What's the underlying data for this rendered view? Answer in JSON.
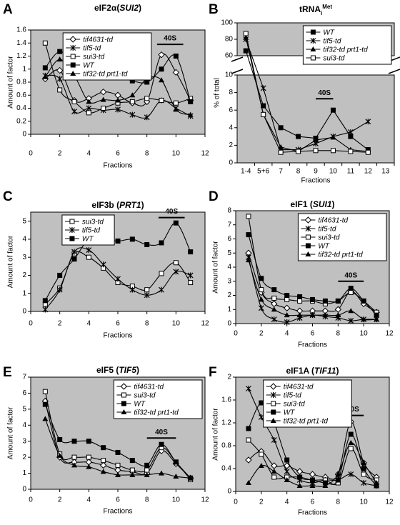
{
  "chart_data": [
    {
      "type": "line",
      "panel": "A",
      "title": [
        {
          "text": "eIF2α("
        },
        {
          "text": "SUI2",
          "style": "italic"
        },
        {
          "text": ")"
        }
      ],
      "xlabel": "Fractions",
      "ylabel": "Amount of factor",
      "smooth": true,
      "legend": "top-center",
      "x": [
        1,
        2,
        3,
        4,
        5,
        6,
        7,
        8,
        9,
        10,
        11
      ],
      "xlim": [
        0,
        12
      ],
      "xticks": [
        0,
        2,
        4,
        6,
        8,
        10,
        12
      ],
      "ylim": [
        0,
        1.6
      ],
      "yticks": [
        0,
        0.2,
        0.4,
        0.6,
        0.8,
        1,
        1.2,
        1.4,
        1.6
      ],
      "annotation": {
        "text": "40S",
        "x": [
          8.7,
          10.5
        ],
        "y": 1.38
      },
      "series": [
        {
          "name": "tif4631-td",
          "marker": "diamond",
          "color": "#000000",
          "values": [
            0.85,
            0.98,
            0.52,
            0.55,
            0.65,
            0.6,
            0.48,
            0.5,
            1.22,
            0.95,
            0.52
          ]
        },
        {
          "name": "tif5-td",
          "marker": "asterisk",
          "color": "#000000",
          "values": [
            0.9,
            0.85,
            0.35,
            0.4,
            0.37,
            0.38,
            0.3,
            0.26,
            0.52,
            0.4,
            0.28
          ]
        },
        {
          "name": "sui3-td",
          "marker": "square-open",
          "color": "#000000",
          "values": [
            1.4,
            0.68,
            0.5,
            0.33,
            0.4,
            0.48,
            0.5,
            0.55,
            0.52,
            0.48,
            0.55
          ]
        },
        {
          "name": "WT",
          "marker": "square",
          "color": "#000000",
          "values": [
            1.02,
            1.27,
            1.08,
            0.98,
            0.97,
            0.9,
            0.82,
            0.8,
            1.0,
            1.2,
            0.5
          ]
        },
        {
          "name": "tif32-td prt1-td",
          "marker": "triangle",
          "color": "#000000",
          "values": [
            0.88,
            1.15,
            0.9,
            0.5,
            0.53,
            0.52,
            0.6,
            0.85,
            0.83,
            0.38,
            0.3
          ]
        }
      ]
    },
    {
      "type": "line",
      "panel": "B",
      "title": [
        {
          "text": "tRNA"
        },
        {
          "text": "i",
          "style": "sub"
        },
        {
          "text": "Met",
          "style": "sup"
        }
      ],
      "xlabel": "Fractions",
      "ylabel": "% of total",
      "smooth": false,
      "legend": "top-right",
      "categories": [
        "1-4",
        "5+6",
        "7",
        "8",
        "9",
        "10",
        "11",
        "12",
        "13"
      ],
      "ylim": [
        0,
        100
      ],
      "ybreak": [
        10,
        60
      ],
      "yticks": [
        0,
        2,
        4,
        6,
        8,
        10,
        60,
        80,
        100
      ],
      "annotation": {
        "text": "40S",
        "x": [
          "9",
          "10"
        ],
        "y": 7.3
      },
      "series": [
        {
          "name": "WT",
          "marker": "square",
          "color": "#000000",
          "values": [
            66,
            6.5,
            4,
            3,
            2.8,
            6,
            3,
            1.5,
            null
          ]
        },
        {
          "name": "tif5-td",
          "marker": "asterisk",
          "color": "#000000",
          "values": [
            80,
            8.5,
            1.5,
            1.5,
            2.2,
            3,
            3.5,
            4.7,
            null
          ]
        },
        {
          "name": "tif32-td prt1-td",
          "marker": "triangle",
          "color": "#000000",
          "values": [
            82,
            5.5,
            1.8,
            1.3,
            2.6,
            2.9,
            1.5,
            1.3,
            null
          ]
        },
        {
          "name": "sui3-td",
          "marker": "square-open",
          "color": "#000000",
          "values": [
            87,
            5.5,
            1.2,
            1.3,
            1.4,
            1.4,
            1.3,
            1.2,
            null
          ]
        }
      ]
    },
    {
      "type": "line",
      "panel": "C",
      "title": [
        {
          "text": "eIF3b ("
        },
        {
          "text": "PRT1",
          "style": "italic"
        },
        {
          "text": ")"
        }
      ],
      "xlabel": "Fractions",
      "ylabel": "Amount of factor",
      "smooth": true,
      "legend": "top-left",
      "x": [
        1,
        2,
        3,
        4,
        5,
        6,
        7,
        8,
        9,
        10,
        11
      ],
      "xlim": [
        0,
        12
      ],
      "xticks": [
        0,
        2,
        4,
        6,
        8,
        10,
        12
      ],
      "ylim": [
        0,
        5.5
      ],
      "yticks": [
        0,
        1,
        2,
        3,
        4,
        5
      ],
      "annotation": {
        "text": "40S",
        "x": [
          8.8,
          10.6
        ],
        "y": 5.2
      },
      "series": [
        {
          "name": "sui3-td",
          "marker": "square-open",
          "color": "#000000",
          "values": [
            0.4,
            1.3,
            3.2,
            3.0,
            2.4,
            1.6,
            1.4,
            1.2,
            2.1,
            2.7,
            1.6
          ]
        },
        {
          "name": "tif5-td",
          "marker": "asterisk",
          "color": "#000000",
          "values": [
            0.1,
            1.2,
            3.3,
            3.4,
            2.6,
            1.8,
            1.2,
            0.9,
            1.2,
            2.2,
            2.0
          ]
        },
        {
          "name": "WT",
          "marker": "square",
          "color": "#000000",
          "values": [
            0.6,
            2.0,
            2.9,
            4.0,
            4.0,
            3.9,
            4.0,
            3.7,
            3.8,
            4.9,
            3.3
          ]
        }
      ]
    },
    {
      "type": "line",
      "panel": "D",
      "title": [
        {
          "text": "eIF1 ("
        },
        {
          "text": "SUI1",
          "style": "italic"
        },
        {
          "text": ")"
        }
      ],
      "xlabel": "Fractions",
      "ylabel": "Amount of factor",
      "smooth": true,
      "legend": "top-right",
      "x": [
        1,
        2,
        3,
        4,
        5,
        6,
        7,
        8,
        9,
        10,
        11
      ],
      "xlim": [
        0,
        12
      ],
      "xticks": [
        0,
        2,
        4,
        6,
        8,
        10,
        12
      ],
      "ylim": [
        0,
        8
      ],
      "yticks": [
        0,
        1,
        2,
        3,
        4,
        5,
        6,
        7,
        8
      ],
      "annotation": {
        "text": "40S",
        "x": [
          8,
          10
        ],
        "y": 3.0
      },
      "series": [
        {
          "name": "tif4631-td",
          "marker": "diamond",
          "color": "#000000",
          "values": [
            5.0,
            2.2,
            1.4,
            1.1,
            0.9,
            0.9,
            0.9,
            1.0,
            2.3,
            1.4,
            0.8
          ]
        },
        {
          "name": "tif5-td",
          "marker": "asterisk",
          "color": "#000000",
          "values": [
            4.7,
            1.1,
            0.3,
            0.1,
            0.4,
            0.6,
            0.5,
            0.4,
            0.2,
            0.3,
            0.3
          ]
        },
        {
          "name": "sui3-td",
          "marker": "square-open",
          "color": "#000000",
          "values": [
            7.6,
            2.4,
            1.8,
            1.7,
            1.6,
            1.6,
            1.4,
            1.6,
            2.2,
            1.6,
            0.8
          ]
        },
        {
          "name": "WT",
          "marker": "square",
          "color": "#000000",
          "values": [
            6.3,
            3.2,
            2.4,
            2.0,
            1.9,
            1.7,
            1.6,
            1.6,
            2.5,
            1.6,
            0.6
          ]
        },
        {
          "name": "tif32-td prt1-td",
          "marker": "triangle",
          "color": "#000000",
          "values": [
            4.5,
            1.7,
            1.0,
            0.6,
            0.6,
            0.6,
            0.6,
            0.6,
            0.9,
            0.3,
            0.3
          ]
        }
      ]
    },
    {
      "type": "line",
      "panel": "E",
      "title": [
        {
          "text": "eIF5 ("
        },
        {
          "text": "TIF5",
          "style": "italic"
        },
        {
          "text": ")"
        }
      ],
      "xlabel": "Fractions",
      "ylabel": "Amount of factor",
      "smooth": true,
      "legend": "top-right",
      "x": [
        1,
        2,
        3,
        4,
        5,
        6,
        7,
        8,
        9,
        10,
        11
      ],
      "xlim": [
        0,
        12
      ],
      "xticks": [
        0,
        2,
        4,
        6,
        8,
        10,
        12
      ],
      "ylim": [
        0,
        7
      ],
      "yticks": [
        0,
        1,
        2,
        3,
        4,
        5,
        6,
        7
      ],
      "annotation": {
        "text": "40S",
        "x": [
          8,
          10
        ],
        "y": 3.2
      },
      "series": [
        {
          "name": "tif4631-td",
          "marker": "diamond",
          "color": "#000000",
          "values": [
            5.5,
            2.0,
            1.7,
            1.7,
            1.5,
            1.2,
            1.1,
            1.0,
            2.4,
            1.6,
            0.7
          ]
        },
        {
          "name": "sui3-td",
          "marker": "square-open",
          "color": "#000000",
          "values": [
            6.1,
            2.2,
            2.0,
            2.0,
            1.8,
            1.5,
            1.2,
            1.2,
            2.6,
            1.7,
            0.6
          ]
        },
        {
          "name": "WT",
          "marker": "square",
          "color": "#000000",
          "values": [
            5.3,
            3.1,
            3.0,
            3.0,
            2.6,
            2.3,
            1.8,
            1.5,
            2.8,
            1.7,
            0.7
          ]
        },
        {
          "name": "tif32-td prt1-td",
          "marker": "triangle",
          "color": "#000000",
          "values": [
            4.4,
            2.1,
            1.5,
            1.4,
            1.1,
            0.9,
            0.9,
            0.9,
            1.0,
            0.8,
            0.7
          ]
        }
      ]
    },
    {
      "type": "line",
      "panel": "F",
      "title": [
        {
          "text": "eIF1A ("
        },
        {
          "text": "TIF11",
          "style": "italic"
        },
        {
          "text": ")"
        }
      ],
      "xlabel": "Fractions",
      "ylabel": "Amount of factor",
      "smooth": true,
      "legend": "top-left",
      "x": [
        1,
        2,
        3,
        4,
        5,
        6,
        7,
        8,
        9,
        10,
        11
      ],
      "xlim": [
        0,
        12
      ],
      "xticks": [
        0,
        2,
        4,
        6,
        8,
        10,
        12
      ],
      "ylim": [
        0,
        2
      ],
      "yticks": [
        0,
        0.4,
        0.8,
        1.2,
        1.6,
        2
      ],
      "annotation": {
        "text": "40S",
        "x": [
          8.3,
          10
        ],
        "y": 1.33
      },
      "series": [
        {
          "name": "tif4631-td",
          "marker": "diamond",
          "color": "#000000",
          "values": [
            0.55,
            0.7,
            0.45,
            0.45,
            0.35,
            0.3,
            0.25,
            0.3,
            1.22,
            0.5,
            0.25
          ]
        },
        {
          "name": "tif5-td",
          "marker": "asterisk",
          "color": "#000000",
          "values": [
            1.8,
            1.3,
            0.9,
            0.35,
            0.2,
            0.15,
            0.2,
            0.2,
            0.3,
            0.15,
            0.1
          ]
        },
        {
          "name": "sui3-td",
          "marker": "square-open",
          "color": "#000000",
          "values": [
            0.9,
            0.65,
            0.25,
            0.25,
            0.25,
            0.2,
            0.2,
            0.15,
            0.75,
            0.3,
            0.2
          ]
        },
        {
          "name": "WT",
          "marker": "square",
          "color": "#000000",
          "values": [
            1.1,
            1.55,
            1.2,
            0.55,
            0.25,
            0.2,
            0.15,
            0.2,
            1.0,
            0.4,
            0.1
          ]
        },
        {
          "name": "tif32-td prt1-td",
          "marker": "triangle",
          "color": "#000000",
          "values": [
            0.15,
            0.45,
            0.35,
            0.2,
            0.1,
            0.1,
            0.1,
            0.3,
            0.85,
            0.5,
            0.15
          ]
        }
      ]
    }
  ]
}
